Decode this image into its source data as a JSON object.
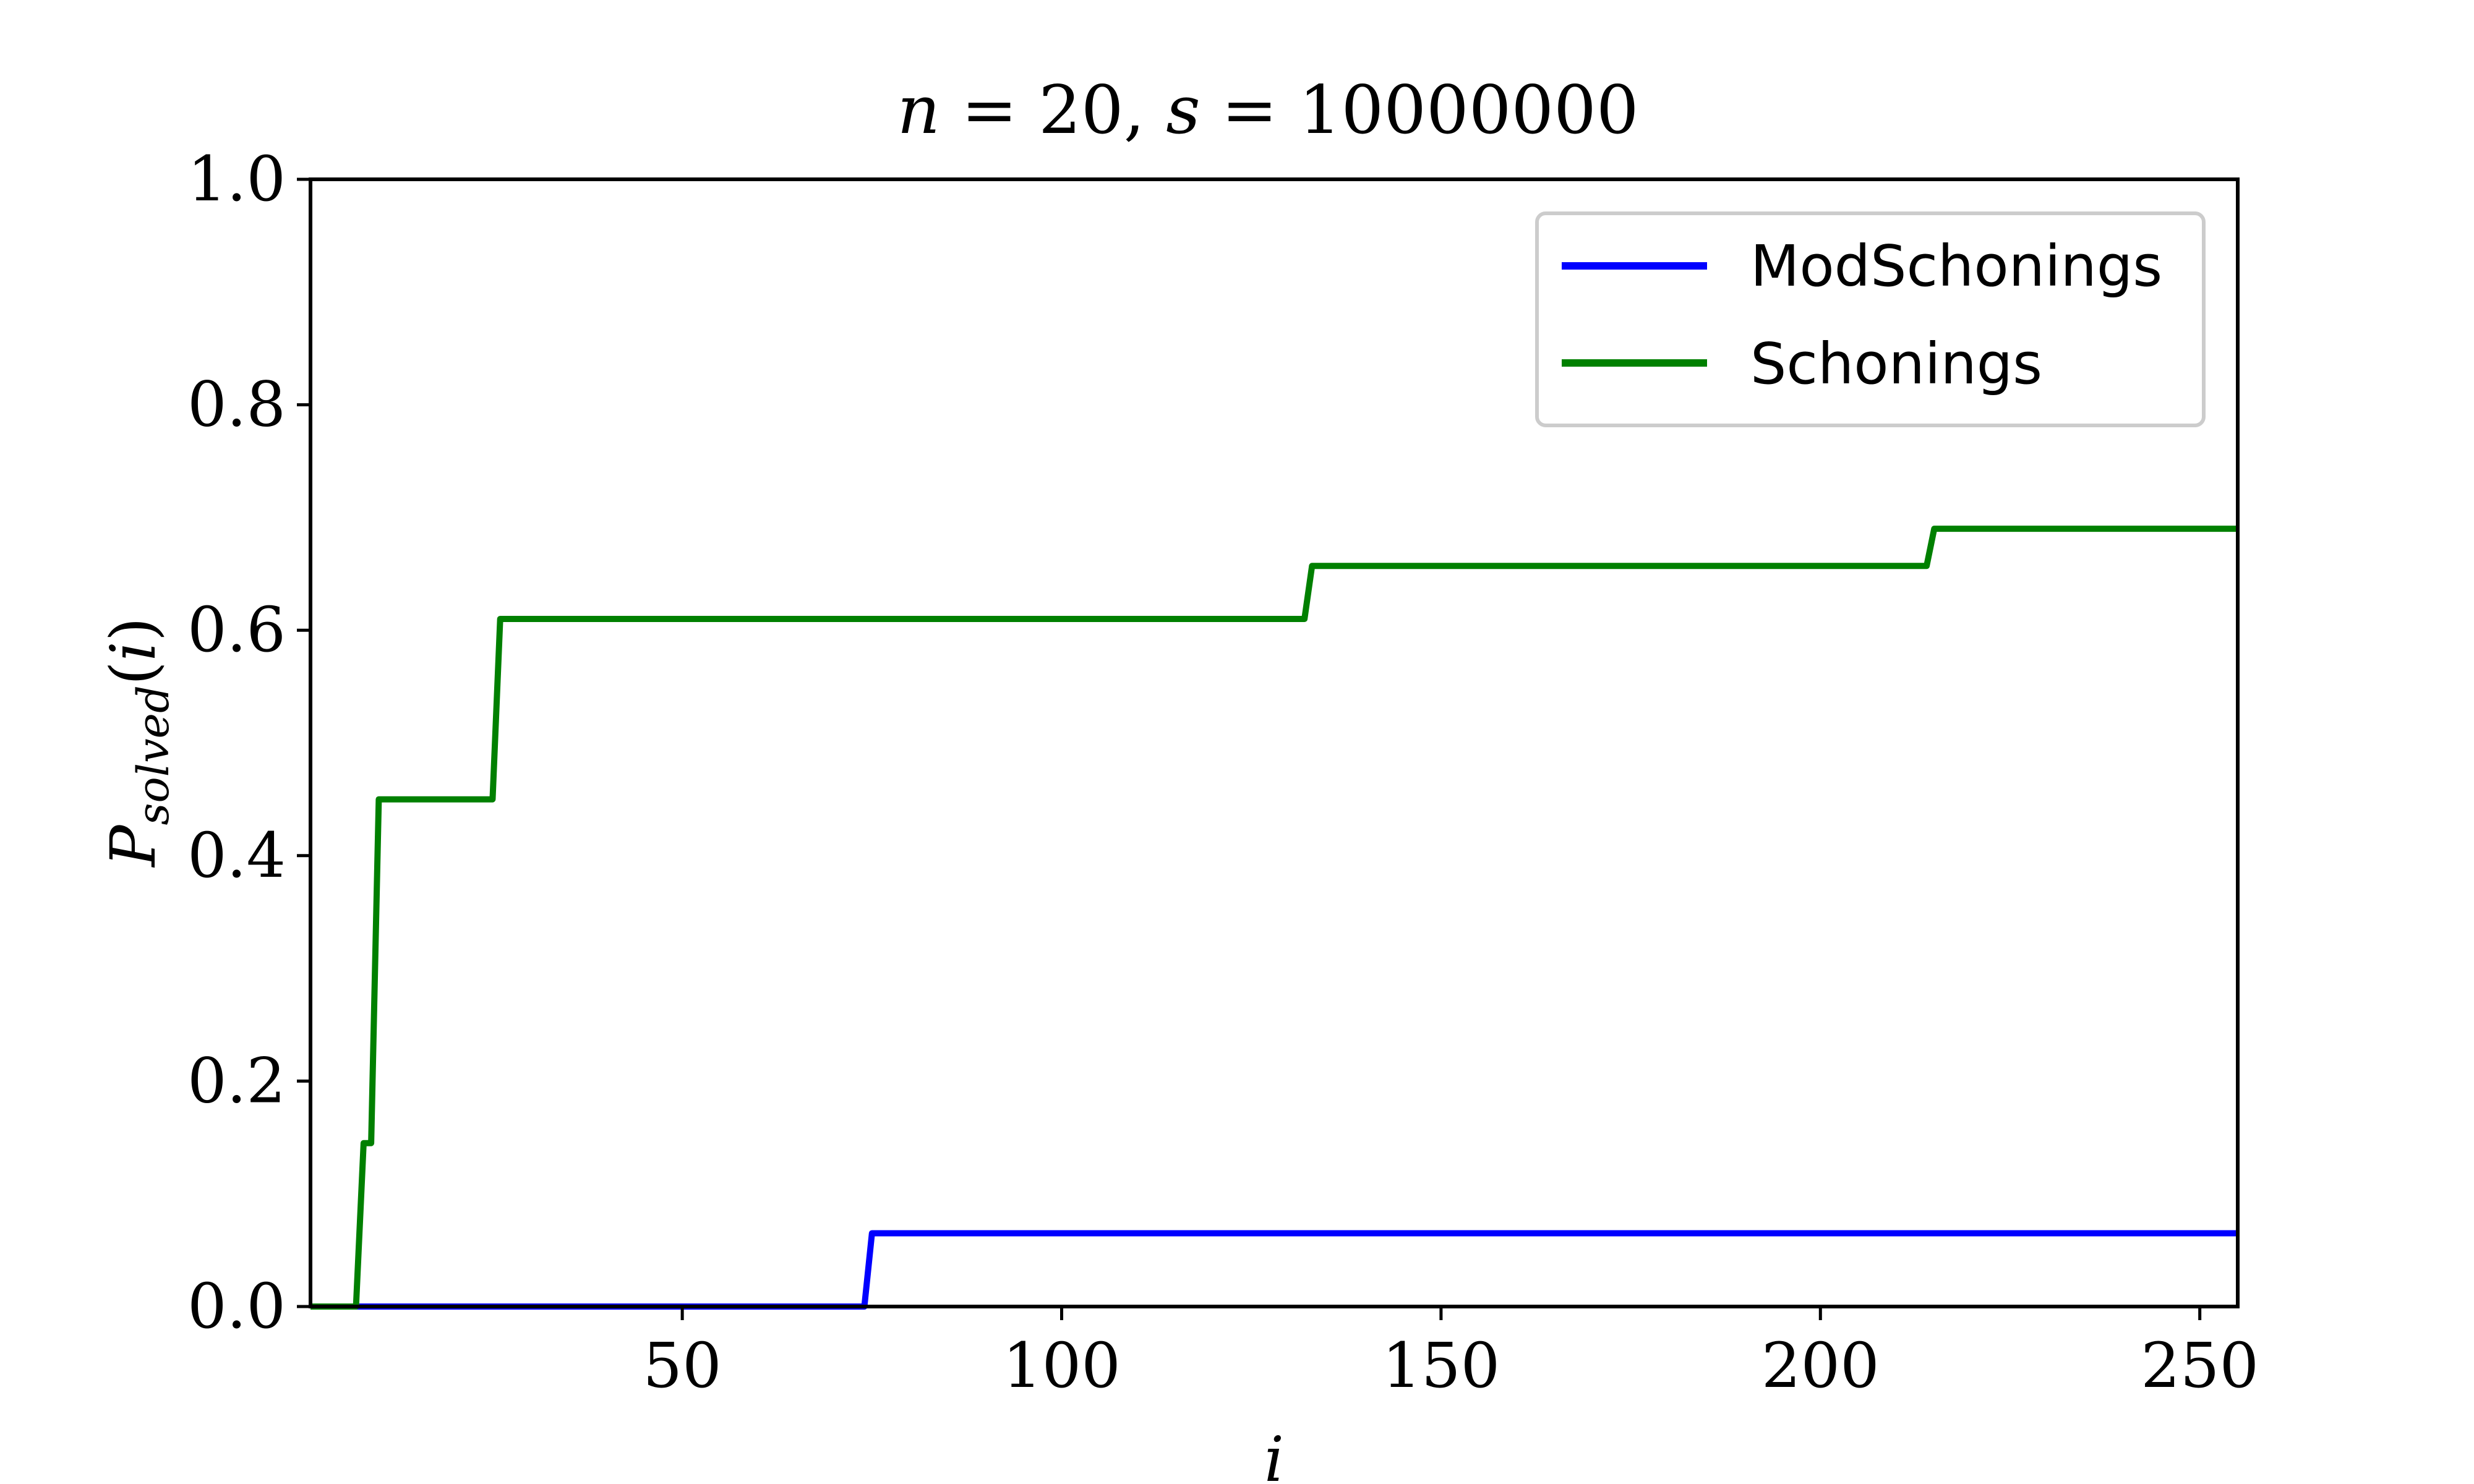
{
  "chart_data": {
    "type": "line",
    "title": {
      "n_var": "n",
      "n_eq": " = 20, ",
      "s_var": "s",
      "s_eq": " = 10000000"
    },
    "xlabel": "i",
    "ylabel": {
      "main": "P",
      "sub": "solved",
      "args_open": "(",
      "arg": "i",
      "args_close": ")"
    },
    "xlim": [
      1,
      255
    ],
    "ylim": [
      0.0,
      1.0
    ],
    "xticks": [
      50,
      100,
      150,
      200,
      250
    ],
    "yticks": [
      0.0,
      0.2,
      0.4,
      0.6,
      0.8,
      1.0
    ],
    "xtick_labels": [
      "50",
      "100",
      "150",
      "200",
      "250"
    ],
    "ytick_labels": [
      "0.0",
      "0.2",
      "0.4",
      "0.6",
      "0.8",
      "1.0"
    ],
    "grid": false,
    "legend_position": "top-right",
    "series": [
      {
        "name": "ModSchonings",
        "color": "#0000ff",
        "x": [
          1,
          74,
          75,
          255
        ],
        "y": [
          0.0,
          0.0,
          0.065,
          0.065
        ]
      },
      {
        "name": "Schonings",
        "color": "#008000",
        "x": [
          1,
          7,
          8,
          9,
          10,
          25,
          26,
          132,
          133,
          214,
          215,
          255
        ],
        "y": [
          0.0,
          0.0,
          0.145,
          0.145,
          0.45,
          0.45,
          0.61,
          0.61,
          0.657,
          0.657,
          0.69,
          0.69
        ]
      }
    ]
  }
}
